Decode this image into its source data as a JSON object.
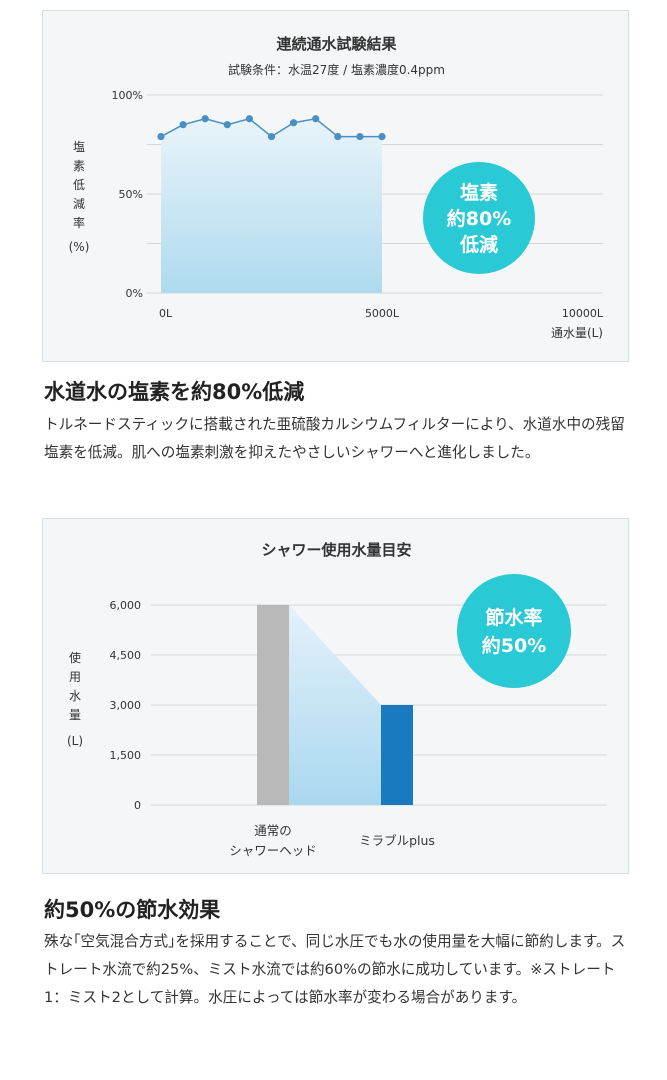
{
  "section1": {
    "heading": "水道水の塩素を約80%低減",
    "body": "トルネードスティックに搭載された亜硫酸カルシウムフィルターにより、水道水中の残留塩素を低減。肌への塩素刺激を抑えたやさしいシャワーへと進化しました。"
  },
  "section2": {
    "heading": "約50%の節水効果",
    "body": "殊な｢空気混合方式｣を採用することで、同じ水圧でも水の使用量を大幅に節約します。ストレート水流で約25%、ミスト水流では約60%の節水に成功しています。※ストレート1：ミスト2として計算。水圧によっては節水率が変わる場合があります。"
  },
  "chart_data": [
    {
      "type": "area",
      "title": "連続通水試験結果",
      "subtitle": "試験条件：水温27度 / 塩素濃度0.4ppm",
      "ylabel": "塩素低減率 (%)",
      "xlabel": "通水量(L)",
      "yticks": [
        "0%",
        "50%",
        "100%"
      ],
      "xticks": [
        "0L",
        "5000L",
        "10000L"
      ],
      "ylim": [
        0,
        100
      ],
      "xlim": [
        0,
        10000
      ],
      "grid": true,
      "x": [
        0,
        500,
        1000,
        1500,
        2000,
        2500,
        3000,
        3500,
        4000,
        4500,
        5000
      ],
      "values": [
        79,
        85,
        88,
        85,
        88,
        79,
        86,
        88,
        79,
        79,
        79
      ],
      "badge": {
        "lines": [
          "塩素",
          "約80%",
          "低減"
        ],
        "color": "#29c9d6"
      },
      "line_color": "#4a8fc4"
    },
    {
      "type": "bar",
      "title": "シャワー使用水量目安",
      "ylabel": "使用水量 (L)",
      "yticks": [
        "0",
        "1,500",
        "3,000",
        "4,500",
        "6,000"
      ],
      "ylim": [
        0,
        6000
      ],
      "grid": true,
      "categories": [
        "通常のシャワーヘッド",
        "ミラブルplus"
      ],
      "category_lines": [
        [
          "通常の",
          "シャワーヘッド"
        ],
        [
          "ミラブルplus"
        ]
      ],
      "values": [
        6000,
        3000
      ],
      "colors": [
        "#b9b9b9",
        "#1a7ac0"
      ],
      "badge": {
        "lines": [
          "節水率",
          "約50%"
        ],
        "color": "#29c9d6"
      }
    }
  ]
}
